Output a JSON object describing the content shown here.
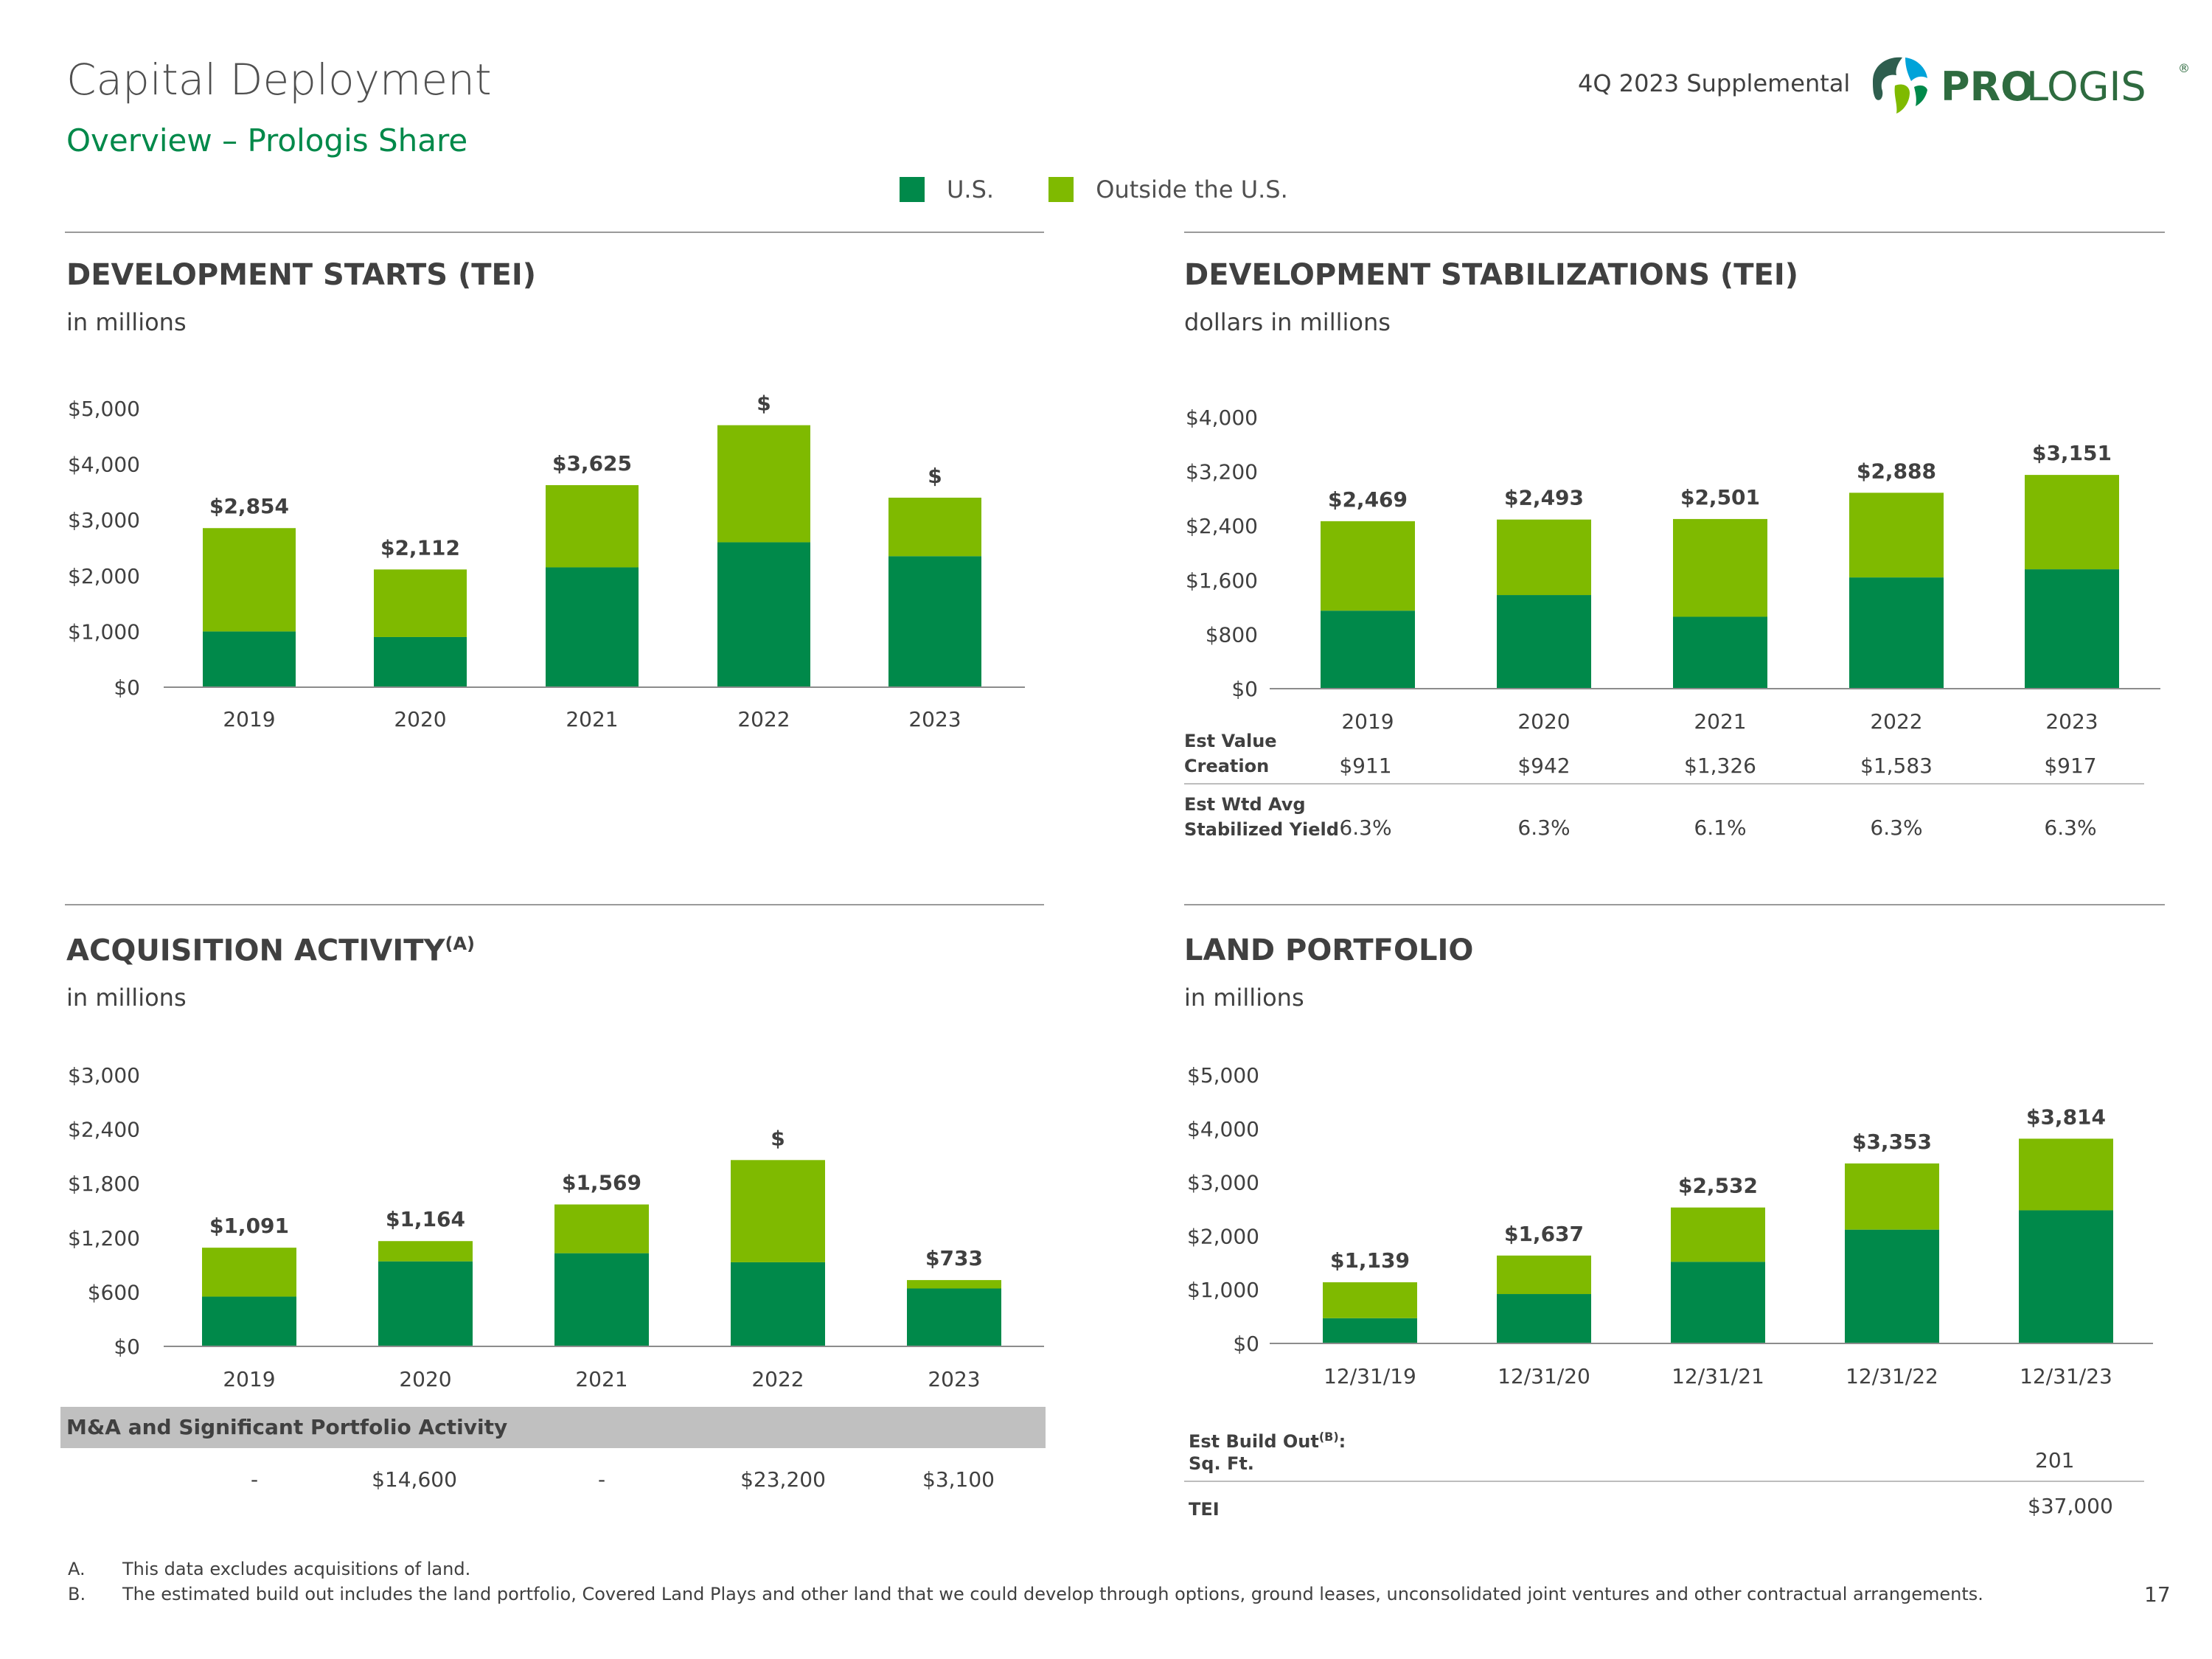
{
  "header": {
    "title": "Capital Deployment",
    "subtitle": "Overview – Prologis Share",
    "supplemental": "4Q 2023 Supplemental",
    "logo_text_pro": "PRO",
    "logo_text_logis": "LOGIS",
    "logo_reg": "®"
  },
  "legend": {
    "us": "U.S.",
    "outside": "Outside the U.S."
  },
  "colors": {
    "us": "#00894a",
    "outside": "#7fba00",
    "text": "#404040",
    "rule": "#9a9a9a"
  },
  "sections": {
    "starts": {
      "title": "DEVELOPMENT STARTS (TEI)",
      "subtitle": "in millions"
    },
    "stabilizations": {
      "title": "DEVELOPMENT STABILIZATIONS (TEI)",
      "subtitle": "dollars in millions"
    },
    "acquisitions": {
      "title": "ACQUISITION ACTIVITY",
      "title_sup": "(A)",
      "subtitle": "in millions"
    },
    "land": {
      "title": "LAND PORTFOLIO",
      "subtitle": "in millions"
    }
  },
  "chart_data": [
    {
      "id": "starts",
      "type": "bar",
      "stacked": true,
      "categories": [
        "2019",
        "2020",
        "2021",
        "2022",
        "2023"
      ],
      "series": [
        {
          "name": "U.S.",
          "values": [
            1000,
            900,
            2150,
            2600,
            2350
          ]
        },
        {
          "name": "Outside the U.S.",
          "values": [
            1854,
            1212,
            1475,
            2100,
            1050
          ]
        }
      ],
      "data_labels": [
        "$2,854",
        "$2,112",
        "$3,625",
        "$",
        "$"
      ],
      "yticks": [
        "$0",
        "$1,000",
        "$2,000",
        "$3,000",
        "$4,000",
        "$5,000"
      ],
      "ylim": [
        0,
        5000
      ]
    },
    {
      "id": "stabilizations",
      "type": "bar",
      "stacked": true,
      "categories": [
        "2019",
        "2020",
        "2021",
        "2022",
        "2023"
      ],
      "series": [
        {
          "name": "U.S.",
          "values": [
            1150,
            1380,
            1060,
            1640,
            1760
          ]
        },
        {
          "name": "Outside the U.S.",
          "values": [
            1319,
            1113,
            1441,
            1248,
            1391
          ]
        }
      ],
      "data_labels": [
        "$2,469",
        "$2,493",
        "$2,501",
        "$2,888",
        "$3,151"
      ],
      "yticks": [
        "$0",
        "$800",
        "$1,600",
        "$2,400",
        "$3,200",
        "$4,000"
      ],
      "ylim": [
        0,
        4000
      ]
    },
    {
      "id": "acquisitions",
      "type": "bar",
      "stacked": true,
      "categories": [
        "2019",
        "2020",
        "2021",
        "2022",
        "2023"
      ],
      "series": [
        {
          "name": "U.S.",
          "values": [
            550,
            940,
            1030,
            930,
            640
          ]
        },
        {
          "name": "Outside the U.S.",
          "values": [
            541,
            224,
            539,
            1130,
            93
          ]
        }
      ],
      "data_labels": [
        "$1,091",
        "$1,164",
        "$1,569",
        "$",
        "$733"
      ],
      "yticks": [
        "$0",
        "$600",
        "$1,200",
        "$1,800",
        "$2,400",
        "$3,000"
      ],
      "ylim": [
        0,
        3000
      ]
    },
    {
      "id": "land",
      "type": "bar",
      "stacked": true,
      "categories": [
        "12/31/19",
        "12/31/20",
        "12/31/21",
        "12/31/22",
        "12/31/23"
      ],
      "series": [
        {
          "name": "U.S.",
          "values": [
            470,
            920,
            1520,
            2120,
            2480
          ]
        },
        {
          "name": "Outside the U.S.",
          "values": [
            669,
            717,
            1012,
            1233,
            1334
          ]
        }
      ],
      "data_labels": [
        "$1,139",
        "$1,637",
        "$2,532",
        "$3,353",
        "$3,814"
      ],
      "yticks": [
        "$0",
        "$1,000",
        "$2,000",
        "$3,000",
        "$4,000",
        "$5,000"
      ],
      "ylim": [
        0,
        5000
      ]
    }
  ],
  "stab_table": {
    "row1_label_a": "Est Value",
    "row1_label_b": "Creation",
    "row1": [
      "$911",
      "$942",
      "$1,326",
      "$1,583",
      "$917"
    ],
    "row2_label_a": "Est Wtd Avg",
    "row2_label_b": "Stabilized Yield",
    "row2": [
      "6.3%",
      "6.3%",
      "6.1%",
      "6.3%",
      "6.3%"
    ]
  },
  "acq_table": {
    "header": "M&A and Significant Portfolio Activity",
    "values": [
      "-",
      "$14,600",
      "-",
      "$23,200",
      "$3,100"
    ]
  },
  "land_table": {
    "label_a": "Est Build Out",
    "label_sup": "(B)",
    "label_colon": ":",
    "sqft_label": "Sq. Ft.",
    "sqft_value": "201",
    "tei_label": "TEI",
    "tei_value": "$37,000"
  },
  "footnotes": {
    "a_key": "A.",
    "a_text": "This data excludes acquisitions of land.",
    "b_key": "B.",
    "b_text": "The estimated build out includes the land portfolio, Covered Land Plays and other land that we could develop through options, ground leases, unconsolidated joint ventures and other contractual arrangements."
  },
  "page_number": "17"
}
